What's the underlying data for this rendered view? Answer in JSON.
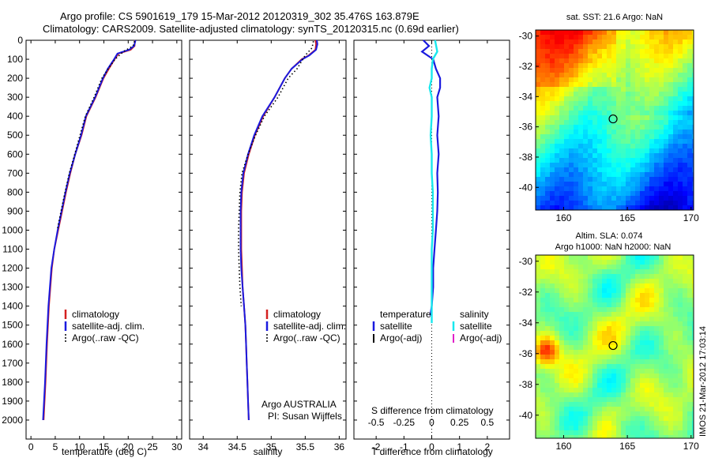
{
  "header": {
    "line1": "Argo profile: CS 5901619_179 15-Mar-2012 20120319_302 35.476S 163.879E",
    "line2": "Climatology: CARS2009. Satellite-adjusted climatology: synTS_20120315.nc (0.69d earlier)"
  },
  "colors": {
    "climatology": "#d42020",
    "satellite": "#1a1adf",
    "argo": "#000000",
    "sat_salinity": "#18e8ee",
    "argo_salinity": "#e020c8"
  },
  "chart_data": [
    {
      "type": "line",
      "name": "temperature-profile",
      "xlabel": "temperature (deg C)",
      "ylabel": "depth",
      "xlim": [
        -1,
        31
      ],
      "ylim": [
        2100,
        0
      ],
      "xticks": [
        0,
        5,
        10,
        15,
        20,
        25,
        30
      ],
      "yticks": [
        0,
        100,
        200,
        300,
        400,
        500,
        600,
        700,
        800,
        900,
        1000,
        1100,
        1200,
        1300,
        1400,
        1500,
        1600,
        1700,
        1800,
        1900,
        2000
      ],
      "legend": [
        "climatology",
        "satellite-adj. clim.",
        "Argo(..raw -QC)"
      ],
      "series": [
        {
          "name": "climatology",
          "depth": [
            0,
            30,
            50,
            70,
            100,
            150,
            200,
            300,
            400,
            500,
            600,
            700,
            800,
            900,
            1000,
            1100,
            1200,
            1400,
            1600,
            1800,
            2000
          ],
          "values": [
            21.4,
            21.3,
            20.5,
            18,
            17.2,
            16,
            14.9,
            13.3,
            11.4,
            10.4,
            9.1,
            8.1,
            7.2,
            6.4,
            5.6,
            4.8,
            4.3,
            3.7,
            3.3,
            3,
            2.6
          ]
        },
        {
          "name": "satellite-adj. clim.",
          "depth": [
            0,
            30,
            50,
            70,
            100,
            150,
            200,
            300,
            400,
            500,
            600,
            700,
            800,
            900,
            1000,
            1100,
            1200,
            1400,
            1600,
            1800,
            2000
          ],
          "values": [
            21.5,
            21.2,
            20.2,
            17.8,
            17.1,
            15.8,
            14.8,
            13.2,
            11.3,
            10.3,
            9.1,
            8,
            7.1,
            6.3,
            5.5,
            4.8,
            4.2,
            3.6,
            3.2,
            2.9,
            2.5
          ]
        },
        {
          "name": "Argo(..raw -QC)",
          "depth": [
            5,
            30,
            60,
            100,
            150,
            200,
            300,
            400,
            500,
            600,
            700,
            800,
            900,
            1000
          ],
          "values": [
            21.3,
            21,
            19,
            17.3,
            15.9,
            14.6,
            13,
            11.2,
            10.1,
            9,
            7.9,
            7,
            6.2,
            5.4
          ]
        }
      ]
    },
    {
      "type": "line",
      "name": "salinity-profile",
      "xlabel": "salinity",
      "xlim": [
        33.8,
        36.1
      ],
      "ylim": [
        2100,
        0
      ],
      "xticks": [
        34,
        34.5,
        35,
        35.5,
        36
      ],
      "legend": [
        "climatology",
        "satellite-adj. clim.",
        "Argo(..raw -QC)"
      ],
      "series": [
        {
          "name": "climatology",
          "depth": [
            0,
            20,
            50,
            80,
            100,
            150,
            200,
            300,
            400,
            500,
            600,
            700,
            800,
            900,
            1000,
            1100,
            1200,
            1300,
            1400,
            1500,
            1600,
            1700,
            1800,
            1900,
            2000
          ],
          "values": [
            35.65,
            35.66,
            35.65,
            35.55,
            35.45,
            35.3,
            35.2,
            35.05,
            34.88,
            34.76,
            34.67,
            34.6,
            34.57,
            34.56,
            34.56,
            34.56,
            34.57,
            34.58,
            34.6,
            34.62,
            34.63,
            34.64,
            34.65,
            34.66,
            34.67
          ]
        },
        {
          "name": "satellite-adj. clim.",
          "depth": [
            0,
            20,
            50,
            80,
            100,
            150,
            200,
            300,
            400,
            500,
            600,
            700,
            800,
            900,
            1000,
            1100,
            1200,
            1300,
            1400,
            1500,
            1600,
            1700,
            1800,
            1900,
            2000
          ],
          "values": [
            35.67,
            35.68,
            35.66,
            35.56,
            35.46,
            35.3,
            35.2,
            35.05,
            34.87,
            34.75,
            34.66,
            34.59,
            34.56,
            34.55,
            34.55,
            34.55,
            34.56,
            34.58,
            34.6,
            34.62,
            34.63,
            34.64,
            34.65,
            34.66,
            34.67
          ]
        },
        {
          "name": "Argo(..raw -QC)",
          "depth": [
            5,
            40,
            80,
            150,
            200,
            300,
            400,
            500,
            600,
            700,
            800,
            900,
            1000,
            1100,
            1200,
            1300,
            1400
          ],
          "values": [
            35.62,
            35.6,
            35.5,
            35.38,
            35.25,
            35.1,
            34.9,
            34.77,
            34.66,
            34.57,
            34.54,
            34.53,
            34.52,
            34.52,
            34.53,
            34.54,
            34.56
          ]
        }
      ]
    },
    {
      "type": "line",
      "name": "difference-profile",
      "xlabel": "T difference from climatology",
      "toplabel": "S difference from climatology",
      "xlim": [
        -2.8,
        2.8
      ],
      "ylim": [
        2100,
        0
      ],
      "xticks": [
        -2,
        -1,
        0,
        1,
        2
      ],
      "sticks": [
        -0.5,
        -0.25,
        0,
        0.25,
        0.5
      ],
      "s_tick_labels": [
        "-0.5",
        "-0.25",
        "0",
        "0.25",
        "0.5"
      ],
      "legend_temperature_heading": "temperature",
      "legend_salinity_heading": "salinity",
      "legend_temperature": [
        "satellite",
        "Argo(-adj)"
      ],
      "legend_salinity": [
        "satellite",
        "Argo(-adj)"
      ],
      "series": [
        {
          "name": "temperature satellite",
          "depth": [
            0,
            30,
            60,
            100,
            150,
            200,
            250,
            300,
            400,
            500,
            600,
            700,
            800,
            900,
            1000,
            1100,
            1200,
            1300,
            1400,
            1450
          ],
          "values": [
            -0.3,
            -0.1,
            -0.35,
            0.05,
            0.15,
            0.3,
            0.3,
            0.2,
            0.25,
            0.2,
            0.25,
            0.2,
            0.22,
            0.2,
            0.15,
            0.1,
            0.05,
            0.05,
            0.0,
            -0.05
          ]
        },
        {
          "name": "salinity satellite",
          "depth": [
            0,
            30,
            60,
            100,
            150,
            200,
            250,
            300,
            400,
            500,
            600,
            700,
            800,
            900,
            1000,
            1100,
            1200,
            1300,
            1400,
            1490
          ],
          "values": [
            0.03,
            0.04,
            0.05,
            0.01,
            0.0,
            0.0,
            -0.02,
            0.0,
            0.0,
            -0.01,
            0.0,
            0.0,
            0.01,
            0.01,
            0.01,
            0.0,
            0.0,
            0.0,
            0.0,
            0.0
          ]
        }
      ]
    },
    {
      "type": "heatmap",
      "name": "sst-map",
      "title": "sat. SST: 21.6 Argo: NaN",
      "xlim": [
        157.8,
        170.2
      ],
      "ylim": [
        -41.5,
        -29.6
      ],
      "xticks": [
        160,
        165,
        170
      ],
      "yticks": [
        -30,
        -32,
        -34,
        -36,
        -38,
        -40
      ],
      "marker": [
        163.879,
        -35.476
      ]
    },
    {
      "type": "heatmap",
      "name": "sla-map",
      "title": "Altim. SLA: 0.074",
      "subtitle": "Argo h1000: NaN h2000: NaN",
      "xlim": [
        157.8,
        170.2
      ],
      "ylim": [
        -41.5,
        -29.6
      ],
      "xticks": [
        160,
        165,
        170
      ],
      "yticks": [
        -30,
        -32,
        -34,
        -36,
        -38,
        -40
      ],
      "marker": [
        163.879,
        -35.476
      ]
    }
  ],
  "panels": {
    "temp_xlabel": "temperature (deg C)",
    "sal_xlabel": "salinity",
    "diff_xlabel": "T difference from climatology",
    "diff_toplabel": "S difference from climatology",
    "credit_line1": "Argo AUSTRALIA",
    "credit_line2": "PI: Susan Wijffels",
    "legend": {
      "climatology": "climatology",
      "satellite_adj": "satellite-adj. clim.",
      "argo_raw": "Argo(..raw -QC)",
      "temperature": "temperature",
      "salinity": "salinity",
      "satellite": "satellite",
      "argo_adj": "Argo(-adj)"
    }
  },
  "maps": {
    "sst_title": "sat. SST: 21.6 Argo: NaN",
    "sla_title": "Altim. SLA: 0.074",
    "sla_subtitle": "Argo h1000: NaN h2000: NaN"
  },
  "watermark": "IMOS 21-Mar-2012 17:03:14"
}
